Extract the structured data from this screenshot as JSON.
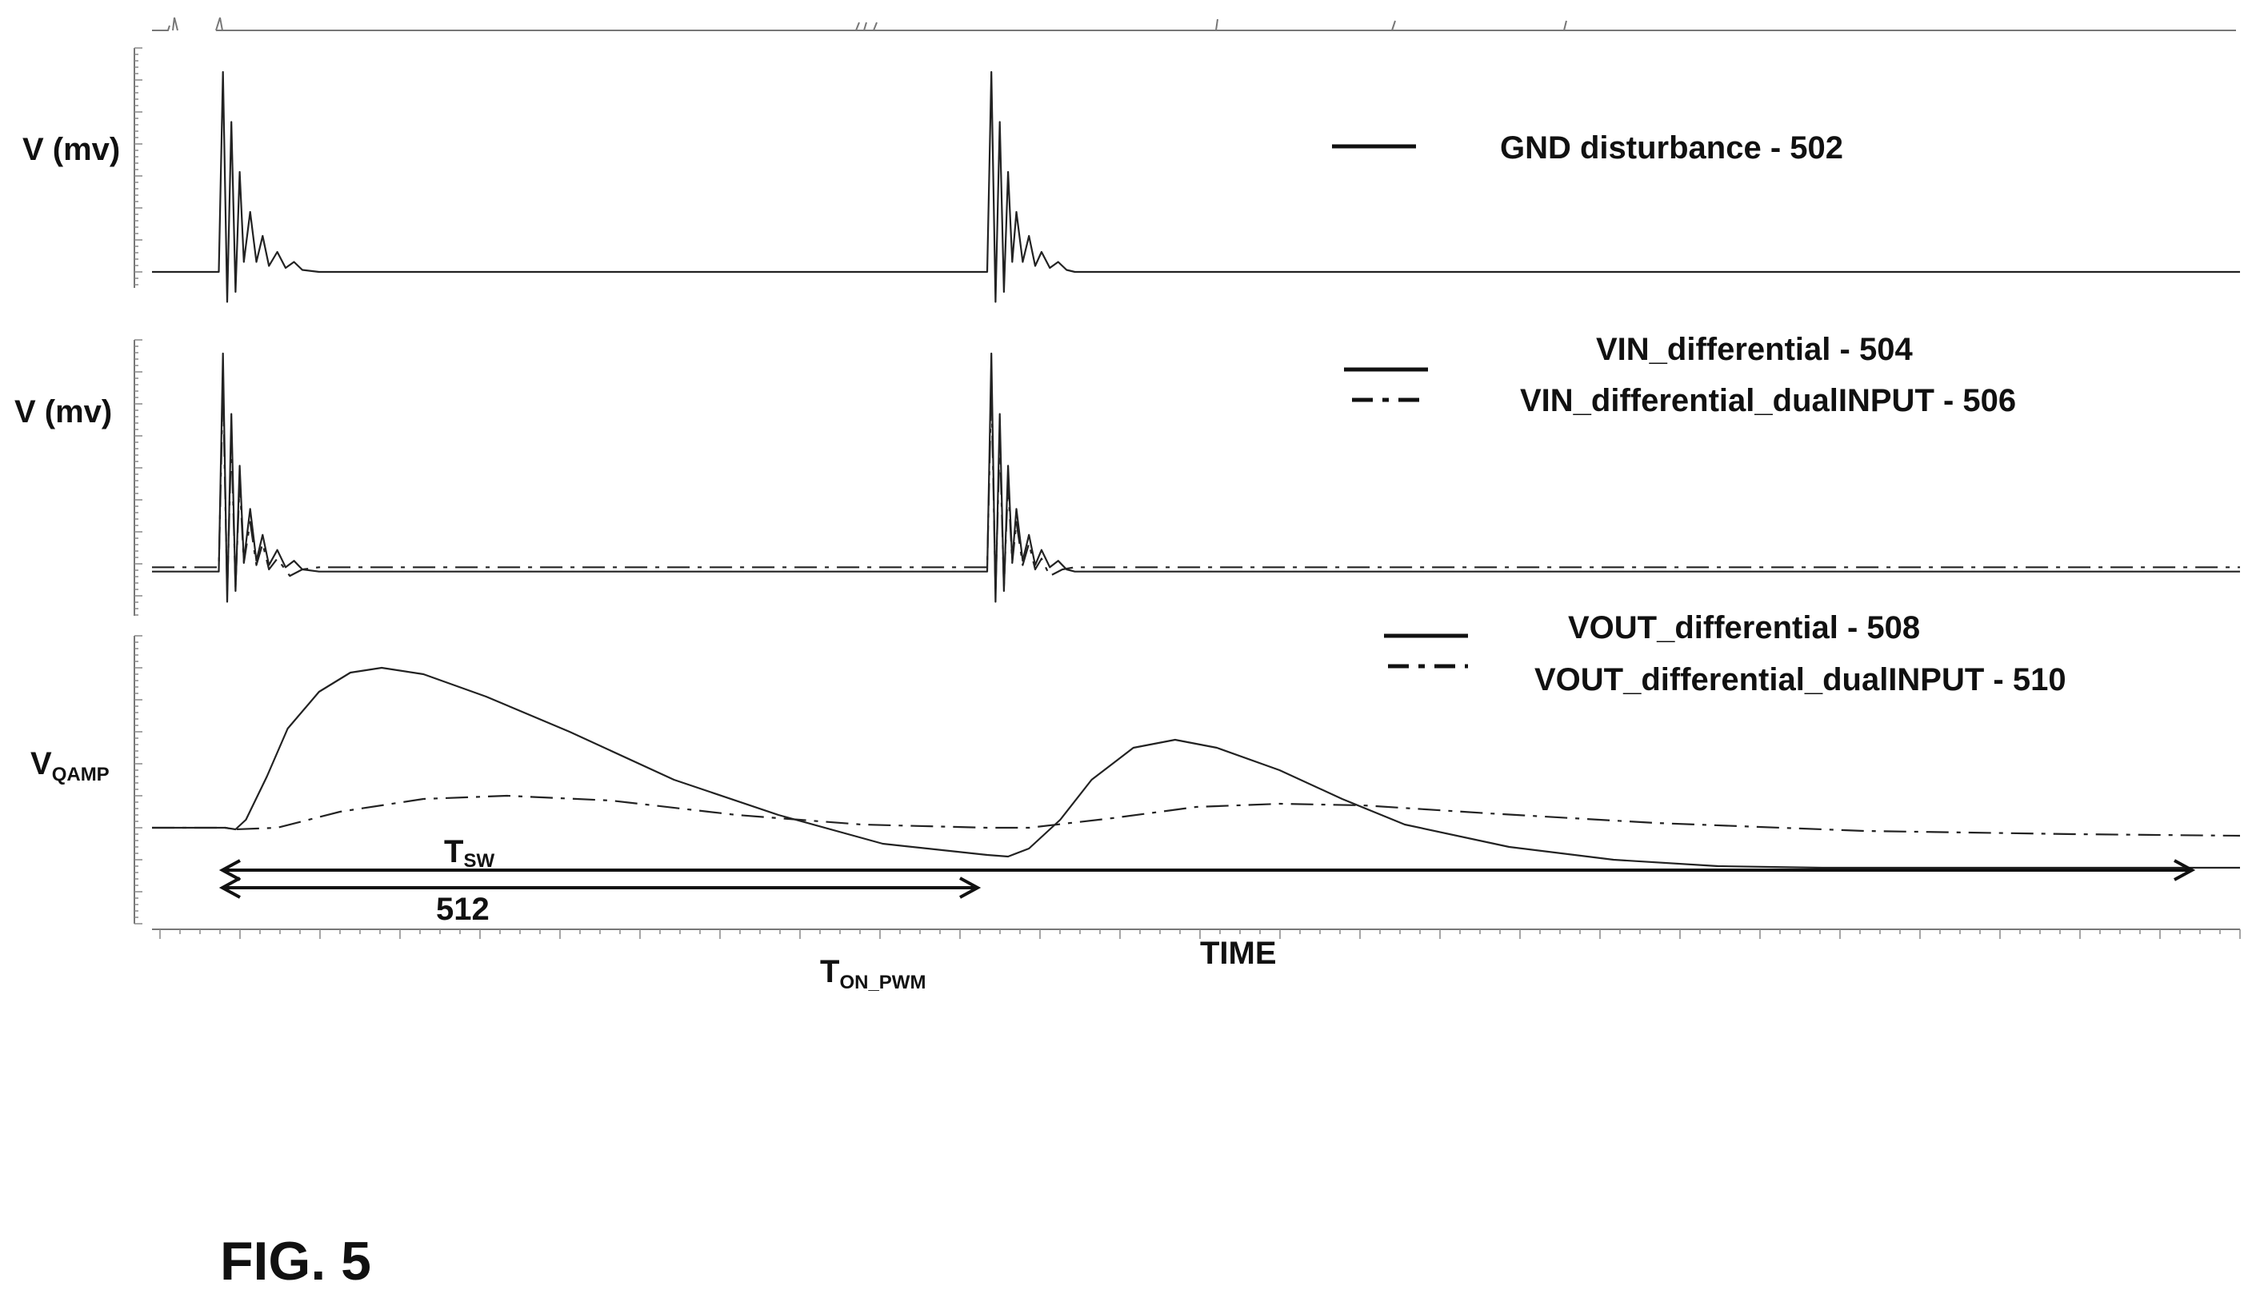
{
  "chart_data": [
    {
      "type": "line",
      "ylabel": "V (mv)",
      "series": [
        {
          "name": "GND disturbance - 502",
          "style": "solid",
          "x": [
            0.0,
            0.032,
            0.034,
            0.036,
            0.038,
            0.04,
            0.042,
            0.044,
            0.047,
            0.05,
            0.053,
            0.056,
            0.06,
            0.064,
            0.068,
            0.072,
            0.08,
            0.4,
            0.402,
            0.404,
            0.406,
            0.408,
            0.41,
            0.412,
            0.414,
            0.417,
            0.42,
            0.423,
            0.426,
            0.43,
            0.434,
            0.438,
            0.442,
            0.45,
            1.0
          ],
          "y": [
            0,
            0,
            1.0,
            -0.15,
            0.75,
            -0.1,
            0.5,
            0.05,
            0.3,
            0.05,
            0.18,
            0.03,
            0.1,
            0.02,
            0.05,
            0.01,
            0,
            0,
            1.0,
            -0.15,
            0.75,
            -0.1,
            0.5,
            0.05,
            0.3,
            0.05,
            0.18,
            0.03,
            0.1,
            0.02,
            0.05,
            0.01,
            0,
            0,
            0
          ]
        }
      ]
    },
    {
      "type": "line",
      "ylabel": "V (mv)",
      "series": [
        {
          "name": "VIN_differential - 504",
          "style": "solid",
          "x": [
            0.0,
            0.032,
            0.034,
            0.036,
            0.038,
            0.04,
            0.042,
            0.044,
            0.047,
            0.05,
            0.053,
            0.056,
            0.06,
            0.064,
            0.068,
            0.072,
            0.08,
            0.4,
            0.402,
            0.404,
            0.406,
            0.408,
            0.41,
            0.412,
            0.414,
            0.417,
            0.42,
            0.423,
            0.426,
            0.43,
            0.434,
            0.438,
            0.442,
            0.45,
            1.0
          ],
          "y": [
            -0.01,
            -0.01,
            1.0,
            -0.15,
            0.72,
            -0.1,
            0.48,
            0.04,
            0.28,
            0.04,
            0.16,
            0.02,
            0.09,
            0.01,
            0.04,
            0.0,
            -0.01,
            -0.01,
            1.0,
            -0.15,
            0.72,
            -0.1,
            0.48,
            0.04,
            0.28,
            0.04,
            0.16,
            0.02,
            0.09,
            0.01,
            0.04,
            0.0,
            -0.01,
            -0.01,
            -0.01
          ]
        },
        {
          "name": "VIN_differential_dualINPUT - 506",
          "style": "dashdot",
          "x": [
            0.0,
            0.032,
            0.034,
            0.036,
            0.038,
            0.04,
            0.042,
            0.044,
            0.047,
            0.05,
            0.053,
            0.056,
            0.06,
            0.066,
            0.072,
            0.08,
            0.4,
            0.402,
            0.404,
            0.406,
            0.408,
            0.41,
            0.412,
            0.414,
            0.417,
            0.42,
            0.423,
            0.426,
            0.43,
            0.436,
            0.442,
            0.45,
            1.0
          ],
          "y": [
            0.01,
            0.01,
            0.85,
            -0.1,
            0.6,
            -0.08,
            0.4,
            0.03,
            0.22,
            0.02,
            0.12,
            0.0,
            0.05,
            -0.03,
            0.0,
            0.01,
            0.01,
            0.85,
            -0.1,
            0.6,
            -0.08,
            0.4,
            0.03,
            0.22,
            0.02,
            0.12,
            0.0,
            0.05,
            -0.03,
            0.0,
            0.01,
            0.01,
            0.01
          ]
        }
      ]
    },
    {
      "type": "line",
      "ylabel": "VQAMP",
      "series": [
        {
          "name": "VOUT_differential - 508",
          "style": "solid",
          "x": [
            0.0,
            0.035,
            0.04,
            0.045,
            0.055,
            0.065,
            0.08,
            0.095,
            0.11,
            0.13,
            0.16,
            0.2,
            0.25,
            0.3,
            0.35,
            0.4,
            0.41,
            0.42,
            0.435,
            0.45,
            0.47,
            0.49,
            0.51,
            0.54,
            0.57,
            0.6,
            0.65,
            0.7,
            0.75,
            0.8,
            0.9,
            1.0
          ],
          "y": [
            0,
            0,
            -0.01,
            0.05,
            0.32,
            0.62,
            0.85,
            0.97,
            1.0,
            0.96,
            0.82,
            0.6,
            0.3,
            0.08,
            -0.1,
            -0.17,
            -0.18,
            -0.13,
            0.05,
            0.3,
            0.5,
            0.55,
            0.5,
            0.36,
            0.18,
            0.02,
            -0.12,
            -0.2,
            -0.24,
            -0.25,
            -0.25,
            -0.25
          ]
        },
        {
          "name": "VOUT_differential_dualINPUT - 510",
          "style": "dashdot",
          "x": [
            0.0,
            0.035,
            0.04,
            0.06,
            0.09,
            0.13,
            0.17,
            0.22,
            0.28,
            0.34,
            0.4,
            0.42,
            0.46,
            0.5,
            0.54,
            0.58,
            0.64,
            0.72,
            0.82,
            0.92,
            1.0
          ],
          "y": [
            0,
            0,
            -0.01,
            0.0,
            0.1,
            0.18,
            0.2,
            0.17,
            0.08,
            0.02,
            0.0,
            0.0,
            0.06,
            0.13,
            0.15,
            0.14,
            0.09,
            0.03,
            -0.02,
            -0.04,
            -0.05
          ]
        }
      ]
    }
  ],
  "xlabel": "TIME",
  "legend": {
    "gnd": "GND disturbance - 502",
    "vin": "VIN_differential - 504",
    "vin_dual": "VIN_differential_dualINPUT - 506",
    "vout": "VOUT_differential - 508",
    "vout_dual": "VOUT_differential_dualINPUT - 510"
  },
  "labels": {
    "ylabel_1": "V (mv)",
    "ylabel_2": "V (mv)",
    "vqamp_main": "V",
    "vqamp_sub": "QAMP",
    "tsw_main": "T",
    "tsw_sub": "SW",
    "ref_512": "512",
    "ton_main": "T",
    "ton_sub": "ON_PWM",
    "time": "TIME",
    "figure": "FIG. 5"
  }
}
